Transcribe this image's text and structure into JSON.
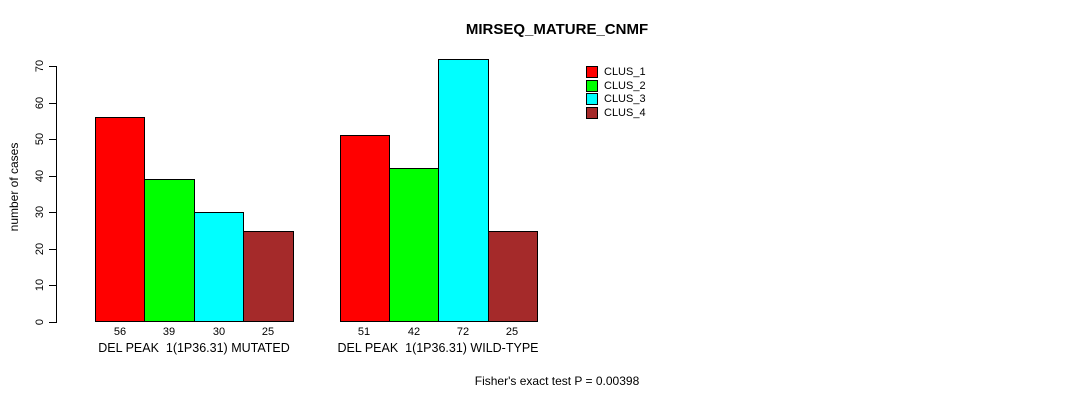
{
  "chart_data": {
    "type": "bar",
    "title": "MIRSEQ_MATURE_CNMF",
    "ylabel": "number of cases",
    "xlabel": "",
    "ylim": [
      0,
      70
    ],
    "yticks": [
      0,
      10,
      20,
      30,
      40,
      50,
      60,
      70
    ],
    "grid": false,
    "legend_position": "top-right",
    "bar_value_labels_shown": true,
    "categories": [
      "DEL PEAK  1(1P36.31) MUTATED",
      "DEL PEAK  1(1P36.31) WILD-TYPE"
    ],
    "series": [
      {
        "name": "CLUS_1",
        "color": "#FF0000",
        "values": [
          56,
          51
        ]
      },
      {
        "name": "CLUS_2",
        "color": "#00FF00",
        "values": [
          39,
          42
        ]
      },
      {
        "name": "CLUS_3",
        "color": "#00FFFF",
        "values": [
          30,
          72
        ]
      },
      {
        "name": "CLUS_4",
        "color": "#A52A2A",
        "values": [
          25,
          25
        ]
      }
    ],
    "annotation": "Fisher's exact test P = 0.00398"
  },
  "colors": {
    "axis": "#000000",
    "background": "#FFFFFF"
  }
}
